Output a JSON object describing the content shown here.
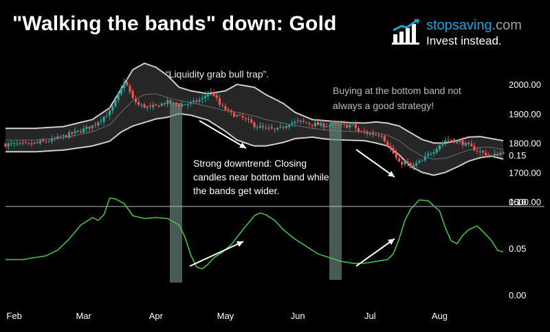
{
  "title": "\"Walking the bands\" down: Gold",
  "brand": {
    "name_main": "stopsaving",
    "name_domain": ".com",
    "tagline": "Invest instead.",
    "logo_icon": "bar-chart-growth-icon"
  },
  "colors": {
    "up": "#26a69a",
    "down": "#ef5350",
    "band": "#d0d0d0",
    "band_fill": "#262626",
    "ma": "#6e6e6e",
    "bandwidth": "#43c24b",
    "highlight": "#6f8a82",
    "brand_blue": "#1fa3d6"
  },
  "annotations": {
    "a1": "“Liquidity grab bull trap”.",
    "a2_line1": "Buying at the bottom band not",
    "a2_line2": "always a good strategy!",
    "a3_line1": "Strong downtrend: Closing",
    "a3_line2": "candles near bottom band while",
    "a3_line3": "the bands get wider."
  },
  "chart_data": [
    {
      "type": "candlestick",
      "title": "\"Walking the bands\" down: Gold",
      "xlabel": "",
      "ylabel": "",
      "x_ticks": [
        "Feb",
        "Mar",
        "Apr",
        "May",
        "Jun",
        "Jul",
        "Aug"
      ],
      "y_ticks": [
        "1600.00",
        "1700.00",
        "1800.00",
        "1900.00",
        "2000.00"
      ],
      "ylim": [
        1600,
        2060
      ],
      "bollinger_upper": [
        [
          0,
          1850
        ],
        [
          10,
          1850
        ],
        [
          20,
          1856
        ],
        [
          30,
          1880
        ],
        [
          36,
          1920
        ],
        [
          40,
          1985
        ],
        [
          44,
          2050
        ],
        [
          48,
          2072
        ],
        [
          52,
          2058
        ],
        [
          56,
          2030
        ],
        [
          60,
          1990
        ],
        [
          64,
          1978
        ],
        [
          70,
          1968
        ],
        [
          76,
          1978
        ],
        [
          80,
          2000
        ],
        [
          86,
          1990
        ],
        [
          90,
          1965
        ],
        [
          96,
          1935
        ],
        [
          100,
          1905
        ],
        [
          106,
          1880
        ],
        [
          112,
          1875
        ],
        [
          118,
          1870
        ],
        [
          124,
          1868
        ],
        [
          128,
          1872
        ],
        [
          132,
          1868
        ],
        [
          136,
          1858
        ],
        [
          140,
          1835
        ],
        [
          144,
          1812
        ],
        [
          148,
          1800
        ],
        [
          152,
          1800
        ],
        [
          156,
          1808
        ],
        [
          160,
          1820
        ],
        [
          164,
          1822
        ],
        [
          168,
          1815
        ],
        [
          172,
          1808
        ]
      ],
      "bollinger_lower": [
        [
          0,
          1770
        ],
        [
          10,
          1770
        ],
        [
          20,
          1776
        ],
        [
          30,
          1790
        ],
        [
          36,
          1806
        ],
        [
          40,
          1838
        ],
        [
          44,
          1858
        ],
        [
          48,
          1870
        ],
        [
          52,
          1882
        ],
        [
          56,
          1888
        ],
        [
          60,
          1900
        ],
        [
          64,
          1895
        ],
        [
          70,
          1878
        ],
        [
          76,
          1840
        ],
        [
          80,
          1810
        ],
        [
          86,
          1790
        ],
        [
          90,
          1790
        ],
        [
          96,
          1802
        ],
        [
          100,
          1815
        ],
        [
          106,
          1820
        ],
        [
          112,
          1812
        ],
        [
          118,
          1810
        ],
        [
          124,
          1808
        ],
        [
          128,
          1800
        ],
        [
          132,
          1790
        ],
        [
          136,
          1760
        ],
        [
          140,
          1720
        ],
        [
          144,
          1700
        ],
        [
          148,
          1690
        ],
        [
          152,
          1700
        ],
        [
          156,
          1718
        ],
        [
          160,
          1738
        ],
        [
          164,
          1750
        ],
        [
          168,
          1755
        ],
        [
          172,
          1745
        ]
      ],
      "moving_average": [
        [
          0,
          1810
        ],
        [
          10,
          1810
        ],
        [
          20,
          1818
        ],
        [
          30,
          1838
        ],
        [
          36,
          1862
        ],
        [
          40,
          1905
        ],
        [
          44,
          1945
        ],
        [
          48,
          1965
        ],
        [
          52,
          1968
        ],
        [
          56,
          1955
        ],
        [
          60,
          1945
        ],
        [
          64,
          1938
        ],
        [
          70,
          1925
        ],
        [
          76,
          1910
        ],
        [
          80,
          1905
        ],
        [
          86,
          1892
        ],
        [
          90,
          1880
        ],
        [
          96,
          1868
        ],
        [
          100,
          1860
        ],
        [
          106,
          1850
        ],
        [
          112,
          1843
        ],
        [
          118,
          1840
        ],
        [
          124,
          1838
        ],
        [
          128,
          1835
        ],
        [
          132,
          1827
        ],
        [
          136,
          1808
        ],
        [
          140,
          1778
        ],
        [
          144,
          1755
        ],
        [
          148,
          1745
        ],
        [
          152,
          1748
        ],
        [
          156,
          1762
        ],
        [
          160,
          1776
        ],
        [
          164,
          1785
        ],
        [
          168,
          1785
        ],
        [
          172,
          1778
        ]
      ],
      "close_path": [
        [
          0,
          1795
        ],
        [
          8,
          1795
        ],
        [
          16,
          1810
        ],
        [
          24,
          1835
        ],
        [
          30,
          1858
        ],
        [
          36,
          1905
        ],
        [
          38,
          1940
        ],
        [
          40,
          1985
        ],
        [
          41,
          2010
        ],
        [
          42,
          1995
        ],
        [
          44,
          1950
        ],
        [
          46,
          1930
        ],
        [
          50,
          1920
        ],
        [
          56,
          1940
        ],
        [
          60,
          1930
        ],
        [
          64,
          1935
        ],
        [
          68,
          1950
        ],
        [
          70,
          1975
        ],
        [
          72,
          1965
        ],
        [
          74,
          1930
        ],
        [
          78,
          1900
        ],
        [
          82,
          1885
        ],
        [
          86,
          1860
        ],
        [
          90,
          1848
        ],
        [
          94,
          1845
        ],
        [
          98,
          1868
        ],
        [
          102,
          1872
        ],
        [
          106,
          1865
        ],
        [
          110,
          1860
        ],
        [
          114,
          1862
        ],
        [
          118,
          1858
        ],
        [
          120,
          1865
        ],
        [
          122,
          1838
        ],
        [
          126,
          1832
        ],
        [
          130,
          1828
        ],
        [
          132,
          1795
        ],
        [
          134,
          1765
        ],
        [
          136,
          1730
        ],
        [
          138,
          1735
        ],
        [
          140,
          1715
        ],
        [
          142,
          1730
        ],
        [
          144,
          1738
        ],
        [
          146,
          1760
        ],
        [
          148,
          1775
        ],
        [
          150,
          1795
        ],
        [
          152,
          1810
        ],
        [
          154,
          1812
        ],
        [
          156,
          1805
        ],
        [
          158,
          1800
        ],
        [
          160,
          1790
        ],
        [
          164,
          1770
        ],
        [
          168,
          1755
        ],
        [
          172,
          1770
        ]
      ],
      "n_candles": 173
    },
    {
      "type": "line",
      "title": "",
      "xlabel": "",
      "ylabel": "",
      "y_ticks": [
        "0.00",
        "0.05",
        "0.10",
        "0.15"
      ],
      "ylim": [
        0,
        0.17
      ],
      "series": [
        {
          "values": [
            [
              0,
              0.038
            ],
            [
              6,
              0.038
            ],
            [
              10,
              0.04
            ],
            [
              14,
              0.042
            ],
            [
              18,
              0.048
            ],
            [
              22,
              0.06
            ],
            [
              26,
              0.075
            ],
            [
              30,
              0.083
            ],
            [
              32,
              0.08
            ],
            [
              34,
              0.086
            ],
            [
              36,
              0.104
            ],
            [
              38,
              0.103
            ],
            [
              41,
              0.098
            ],
            [
              44,
              0.085
            ],
            [
              48,
              0.082
            ],
            [
              52,
              0.083
            ],
            [
              56,
              0.082
            ],
            [
              60,
              0.075
            ],
            [
              62,
              0.062
            ],
            [
              64,
              0.043
            ],
            [
              66,
              0.03
            ],
            [
              68,
              0.028
            ],
            [
              70,
              0.033
            ],
            [
              72,
              0.04
            ],
            [
              75,
              0.046
            ],
            [
              78,
              0.054
            ],
            [
              82,
              0.07
            ],
            [
              86,
              0.085
            ],
            [
              88,
              0.088
            ],
            [
              90,
              0.086
            ],
            [
              93,
              0.08
            ],
            [
              96,
              0.07
            ],
            [
              100,
              0.06
            ],
            [
              104,
              0.052
            ],
            [
              108,
              0.044
            ],
            [
              112,
              0.04
            ],
            [
              116,
              0.036
            ],
            [
              120,
              0.034
            ],
            [
              124,
              0.034
            ],
            [
              128,
              0.036
            ],
            [
              132,
              0.038
            ],
            [
              134,
              0.044
            ],
            [
              136,
              0.06
            ],
            [
              138,
              0.08
            ],
            [
              140,
              0.092
            ],
            [
              143,
              0.102
            ],
            [
              146,
              0.101
            ],
            [
              150,
              0.09
            ],
            [
              152,
              0.072
            ],
            [
              154,
              0.058
            ],
            [
              156,
              0.055
            ],
            [
              158,
              0.064
            ],
            [
              160,
              0.07
            ],
            [
              163,
              0.074
            ],
            [
              165,
              0.068
            ],
            [
              168,
              0.058
            ],
            [
              170,
              0.048
            ],
            [
              172,
              0.046
            ]
          ]
        }
      ]
    }
  ]
}
